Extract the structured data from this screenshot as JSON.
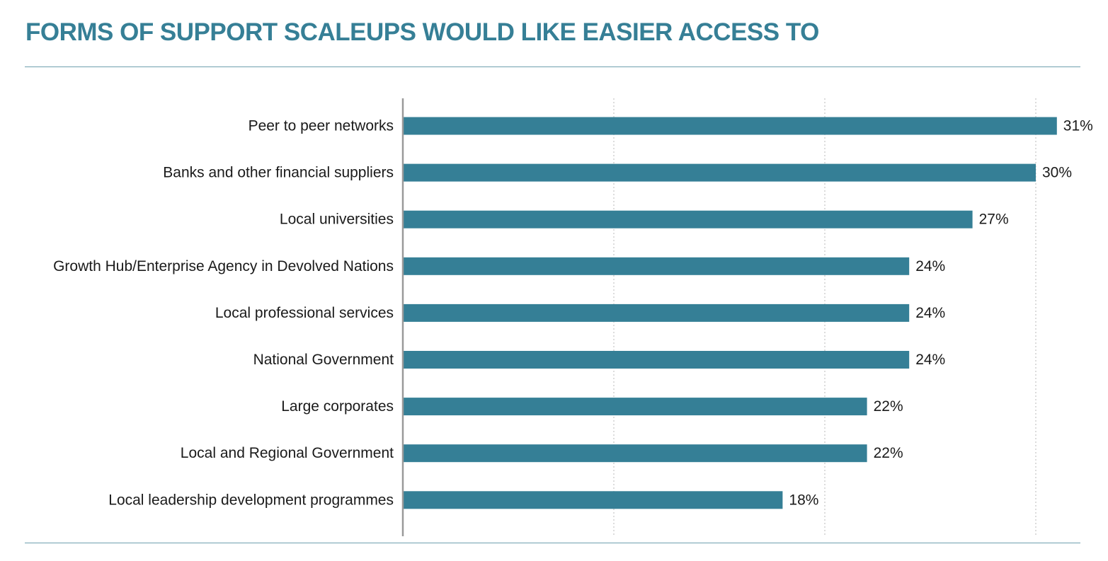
{
  "chart_data": {
    "type": "bar",
    "orientation": "horizontal",
    "title": "FORMS OF SUPPORT SCALEUPS WOULD LIKE EASIER ACCESS TO",
    "categories": [
      "Peer to peer networks",
      "Banks and other financial suppliers",
      "Local universities",
      "Growth Hub/Enterprise Agency in Devolved Nations",
      "Local professional services",
      "National Government",
      "Large corporates",
      "Local and Regional Government",
      "Local leadership development programmes"
    ],
    "values": [
      31,
      30,
      27,
      24,
      24,
      24,
      22,
      22,
      18
    ],
    "value_labels": [
      "31%",
      "30%",
      "27%",
      "24%",
      "24%",
      "24%",
      "22%",
      "22%",
      "18%"
    ],
    "unit": "%",
    "xlim": [
      0,
      30
    ],
    "gridlines": [
      0,
      10,
      20,
      30
    ],
    "grid": true,
    "colors": {
      "bar": "#357f96",
      "title": "#367f96",
      "grid": "#c4c4c4",
      "axis": "#9a9a9a",
      "rule": "#6f9fae"
    }
  }
}
